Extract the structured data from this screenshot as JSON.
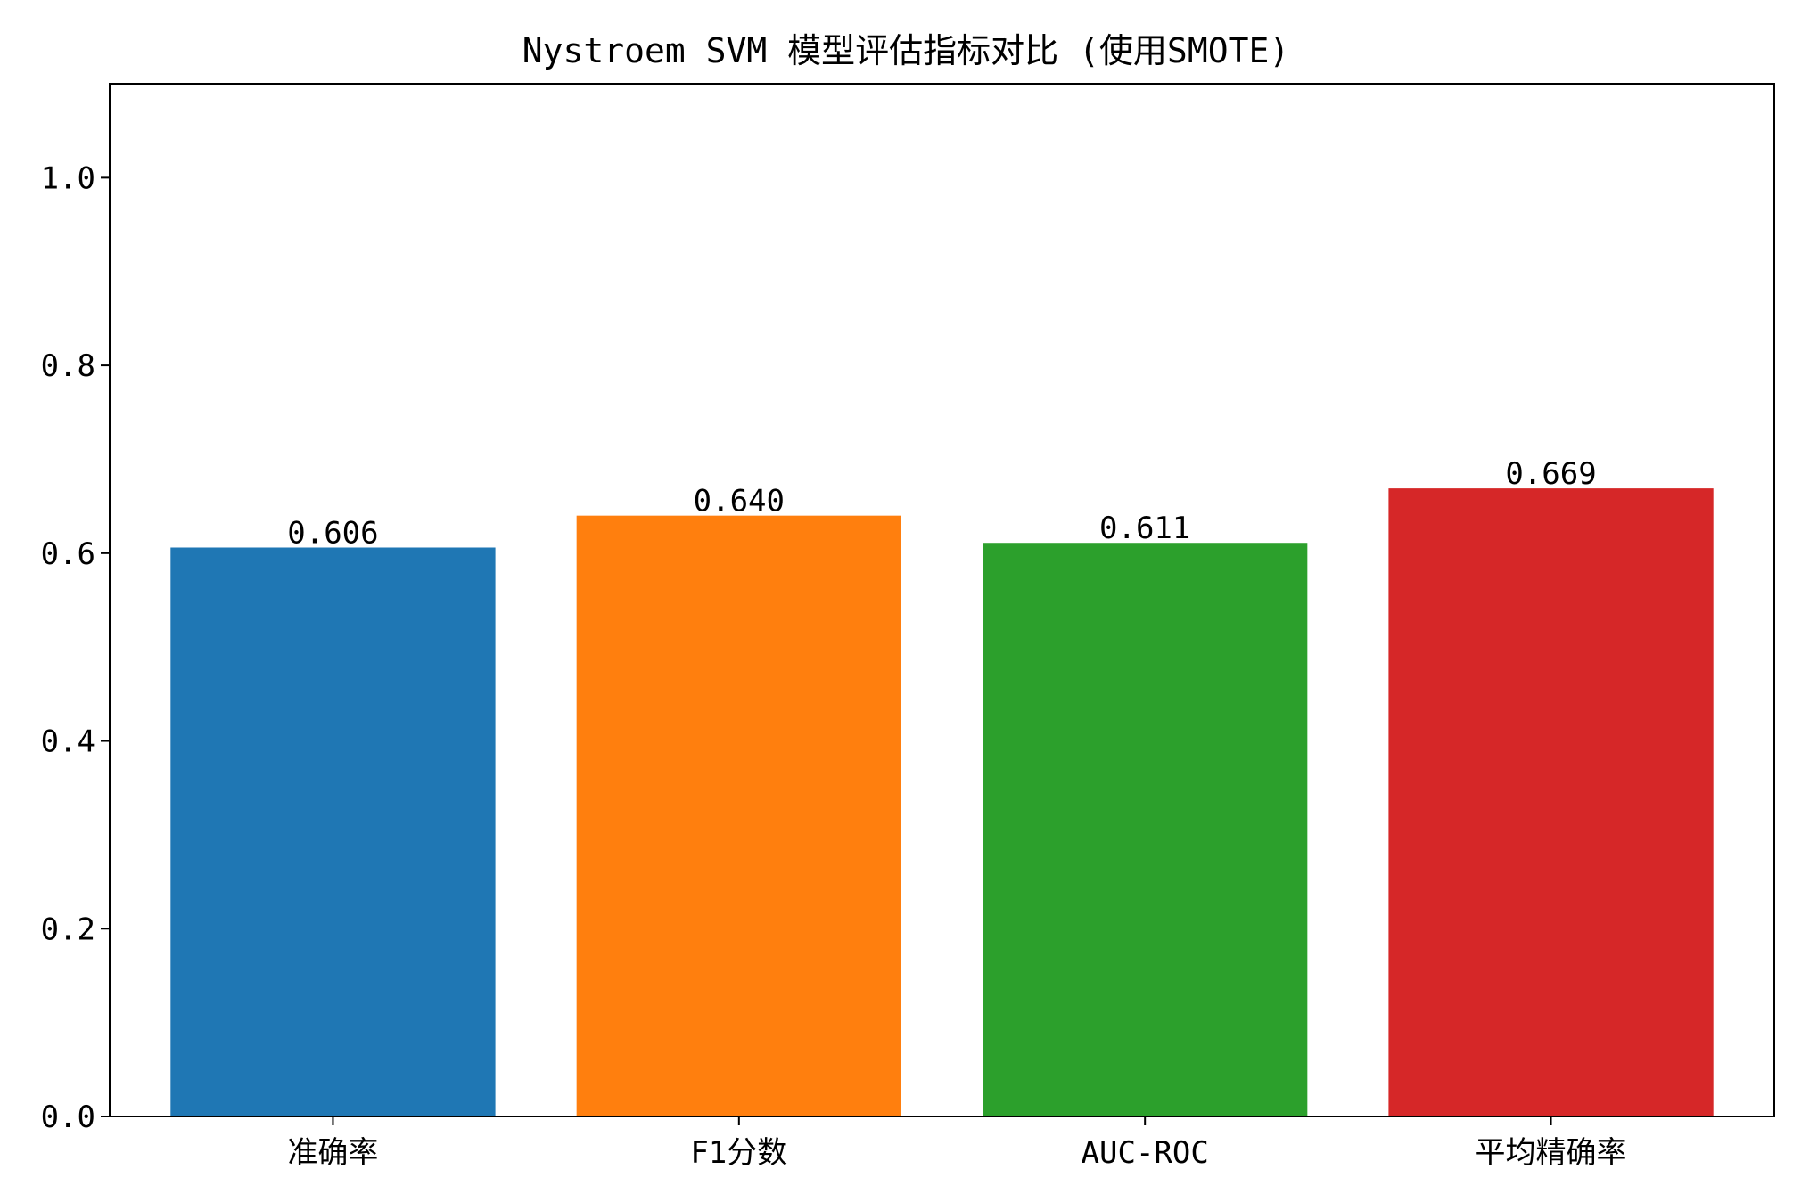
{
  "chart_data": {
    "type": "bar",
    "title": "Nystroem SVM 模型评估指标对比 (使用SMOTE)",
    "xlabel": "",
    "ylabel": "",
    "categories": [
      "准确率",
      "F1分数",
      "AUC-ROC",
      "平均精确率"
    ],
    "values": [
      0.606,
      0.64,
      0.611,
      0.669
    ],
    "data_labels": [
      "0.606",
      "0.640",
      "0.611",
      "0.669"
    ],
    "colors": [
      "#1f77b4",
      "#ff7f0e",
      "#2ca02c",
      "#d62728"
    ],
    "ylim": [
      0,
      1.1
    ],
    "yticks": [
      0.0,
      0.2,
      0.4,
      0.6,
      0.8,
      1.0
    ],
    "ytick_labels": [
      "0.0",
      "0.2",
      "0.4",
      "0.6",
      "0.8",
      "1.0"
    ],
    "grid": false,
    "legend": "none"
  }
}
